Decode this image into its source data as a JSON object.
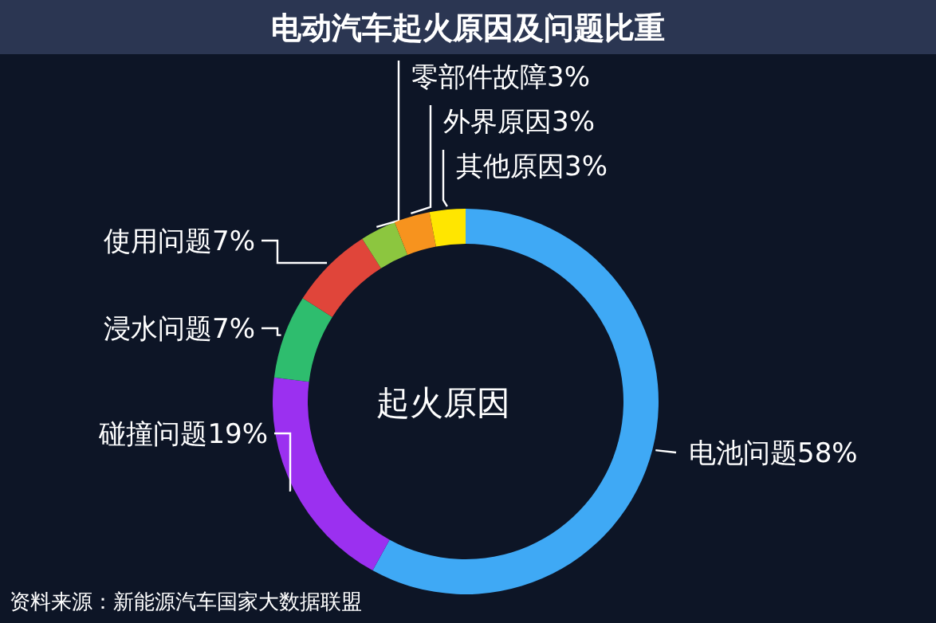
{
  "chart_data": {
    "type": "donut",
    "title": "电动汽车起火原因及问题比重",
    "categories": [
      "电池问题",
      "碰撞问题",
      "浸水问题",
      "使用问题",
      "零部件故障",
      "外界原因",
      "其他原因"
    ],
    "values": [
      58,
      19,
      7,
      7,
      3,
      3,
      3
    ],
    "colors": [
      "#3fa9f5",
      "#9b30f0",
      "#2ebd6e",
      "#e0453a",
      "#8cc63f",
      "#f7931e",
      "#ffe600"
    ],
    "value_labels": [
      "58%",
      "19%",
      "7%",
      "7%",
      "3%",
      "3%",
      "3%"
    ],
    "annotations": [
      "起火原因",
      "资料来源：新能源汽车国家大数据联盟"
    ]
  }
}
